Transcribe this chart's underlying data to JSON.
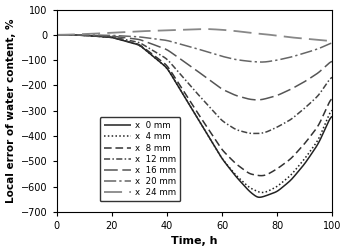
{
  "title": "",
  "xlabel": "Time, h",
  "ylabel": "Local error of water content, %",
  "xlim": [
    0,
    100
  ],
  "ylim": [
    -700,
    100
  ],
  "yticks": [
    100,
    0,
    -100,
    -200,
    -300,
    -400,
    -500,
    -600,
    -700
  ],
  "xticks": [
    0,
    20,
    40,
    60,
    80,
    100
  ],
  "series": [
    {
      "label": "x  0 mm",
      "style": "solid",
      "color": "#222222",
      "lw": 1.1,
      "points": [
        [
          0,
          0
        ],
        [
          5,
          0
        ],
        [
          10,
          -2
        ],
        [
          20,
          -10
        ],
        [
          30,
          -40
        ],
        [
          40,
          -130
        ],
        [
          50,
          -310
        ],
        [
          60,
          -490
        ],
        [
          65,
          -560
        ],
        [
          70,
          -620
        ],
        [
          73,
          -645
        ],
        [
          75,
          -640
        ],
        [
          80,
          -620
        ],
        [
          85,
          -575
        ],
        [
          90,
          -510
        ],
        [
          95,
          -430
        ],
        [
          100,
          -310
        ]
      ]
    },
    {
      "label": "x  4 mm",
      "style": "dotted",
      "color": "#222222",
      "lw": 1.1,
      "points": [
        [
          0,
          0
        ],
        [
          5,
          0
        ],
        [
          10,
          -2
        ],
        [
          20,
          -10
        ],
        [
          30,
          -40
        ],
        [
          40,
          -130
        ],
        [
          50,
          -310
        ],
        [
          60,
          -490
        ],
        [
          65,
          -555
        ],
        [
          70,
          -605
        ],
        [
          74,
          -625
        ],
        [
          76,
          -622
        ],
        [
          80,
          -600
        ],
        [
          85,
          -555
        ],
        [
          90,
          -490
        ],
        [
          95,
          -415
        ],
        [
          100,
          -285
        ]
      ]
    },
    {
      "label": "x  8 mm",
      "style": "dashed_short",
      "color": "#333333",
      "lw": 1.1,
      "points": [
        [
          0,
          0
        ],
        [
          5,
          0
        ],
        [
          10,
          -2
        ],
        [
          20,
          -10
        ],
        [
          30,
          -38
        ],
        [
          40,
          -120
        ],
        [
          50,
          -290
        ],
        [
          60,
          -455
        ],
        [
          65,
          -510
        ],
        [
          70,
          -550
        ],
        [
          74,
          -558
        ],
        [
          76,
          -555
        ],
        [
          80,
          -530
        ],
        [
          85,
          -490
        ],
        [
          90,
          -430
        ],
        [
          95,
          -360
        ],
        [
          100,
          -240
        ]
      ]
    },
    {
      "label": "x  12 mm",
      "style": "dashdot_fine",
      "color": "#444444",
      "lw": 1.1,
      "points": [
        [
          0,
          0
        ],
        [
          5,
          0
        ],
        [
          10,
          -2
        ],
        [
          20,
          -8
        ],
        [
          30,
          -30
        ],
        [
          40,
          -95
        ],
        [
          50,
          -220
        ],
        [
          60,
          -340
        ],
        [
          65,
          -375
        ],
        [
          70,
          -390
        ],
        [
          74,
          -390
        ],
        [
          76,
          -385
        ],
        [
          80,
          -365
        ],
        [
          85,
          -335
        ],
        [
          90,
          -290
        ],
        [
          95,
          -240
        ],
        [
          100,
          -160
        ]
      ]
    },
    {
      "label": "x  16 mm",
      "style": "longdash",
      "color": "#555555",
      "lw": 1.1,
      "points": [
        [
          0,
          0
        ],
        [
          5,
          0
        ],
        [
          10,
          -1
        ],
        [
          20,
          -5
        ],
        [
          30,
          -18
        ],
        [
          40,
          -58
        ],
        [
          50,
          -135
        ],
        [
          60,
          -215
        ],
        [
          65,
          -240
        ],
        [
          70,
          -255
        ],
        [
          73,
          -258
        ],
        [
          75,
          -255
        ],
        [
          80,
          -240
        ],
        [
          85,
          -215
        ],
        [
          90,
          -185
        ],
        [
          95,
          -150
        ],
        [
          100,
          -100
        ]
      ]
    },
    {
      "label": "x  20 mm",
      "style": "dashdot_long",
      "color": "#666666",
      "lw": 1.1,
      "points": [
        [
          0,
          0
        ],
        [
          5,
          0
        ],
        [
          10,
          0
        ],
        [
          20,
          -2
        ],
        [
          30,
          -8
        ],
        [
          40,
          -22
        ],
        [
          50,
          -52
        ],
        [
          60,
          -85
        ],
        [
          65,
          -98
        ],
        [
          70,
          -105
        ],
        [
          74,
          -108
        ],
        [
          76,
          -107
        ],
        [
          80,
          -100
        ],
        [
          85,
          -88
        ],
        [
          90,
          -72
        ],
        [
          95,
          -55
        ],
        [
          100,
          -30
        ]
      ]
    },
    {
      "label": "x  24 mm",
      "style": "longdash_wide",
      "color": "#888888",
      "lw": 1.3,
      "points": [
        [
          0,
          0
        ],
        [
          5,
          1
        ],
        [
          10,
          3
        ],
        [
          20,
          8
        ],
        [
          30,
          14
        ],
        [
          40,
          18
        ],
        [
          50,
          22
        ],
        [
          55,
          23
        ],
        [
          60,
          20
        ],
        [
          65,
          15
        ],
        [
          70,
          8
        ],
        [
          75,
          3
        ],
        [
          80,
          -3
        ],
        [
          85,
          -10
        ],
        [
          90,
          -15
        ],
        [
          95,
          -20
        ],
        [
          100,
          -25
        ]
      ]
    }
  ]
}
